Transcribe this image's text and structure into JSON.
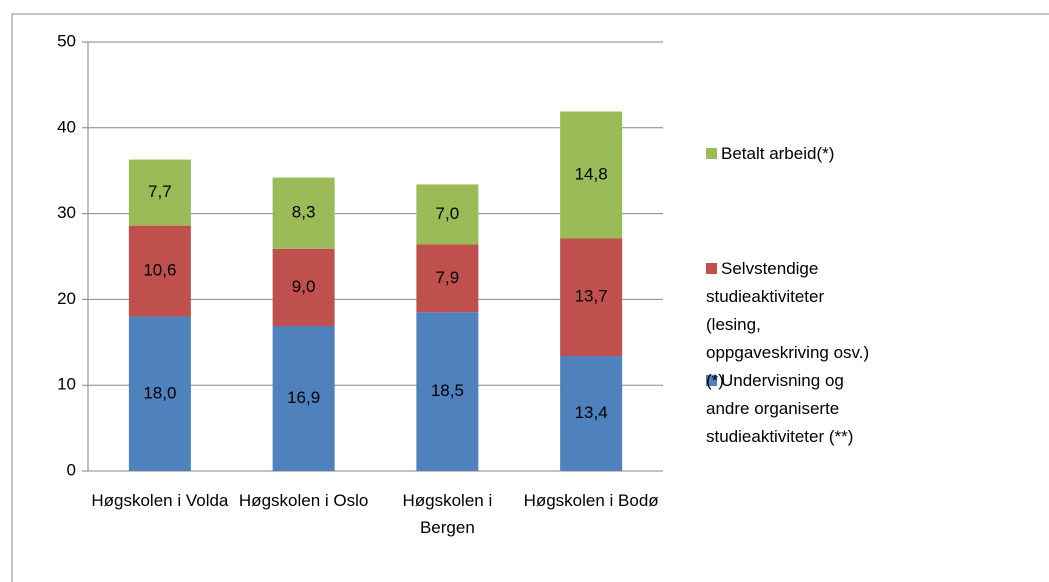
{
  "chart_data": {
    "type": "stacked_bar",
    "categories": [
      "Høgskolen i Volda",
      "Høgskolen i Oslo",
      "Høgskolen i Bergen",
      "Høgskolen i Bodø"
    ],
    "series": [
      {
        "name": "Undervisning og andre organiserte studieaktiviteter (**)",
        "color": "#4f81bd",
        "values": [
          18.0,
          16.9,
          18.5,
          13.4
        ],
        "value_labels": [
          "18,0",
          "16,9",
          "18,5",
          "13,4"
        ]
      },
      {
        "name": "Selvstendige studieaktiviteter (lesing, oppgaveskriving osv.)(*)",
        "color": "#c0504d",
        "values": [
          10.6,
          9.0,
          7.9,
          13.7
        ],
        "value_labels": [
          "10,6",
          "9,0",
          "7,9",
          "13,7"
        ]
      },
      {
        "name": "Betalt arbeid(*)",
        "color": "#9bbb59",
        "values": [
          7.7,
          8.3,
          7.0,
          14.8
        ],
        "value_labels": [
          "7,7",
          "8,3",
          "7,0",
          "14,8"
        ]
      }
    ],
    "ylim": [
      0,
      50
    ],
    "yticks": [
      0,
      10,
      20,
      30,
      40,
      50
    ],
    "grid": true,
    "legend": "right"
  }
}
